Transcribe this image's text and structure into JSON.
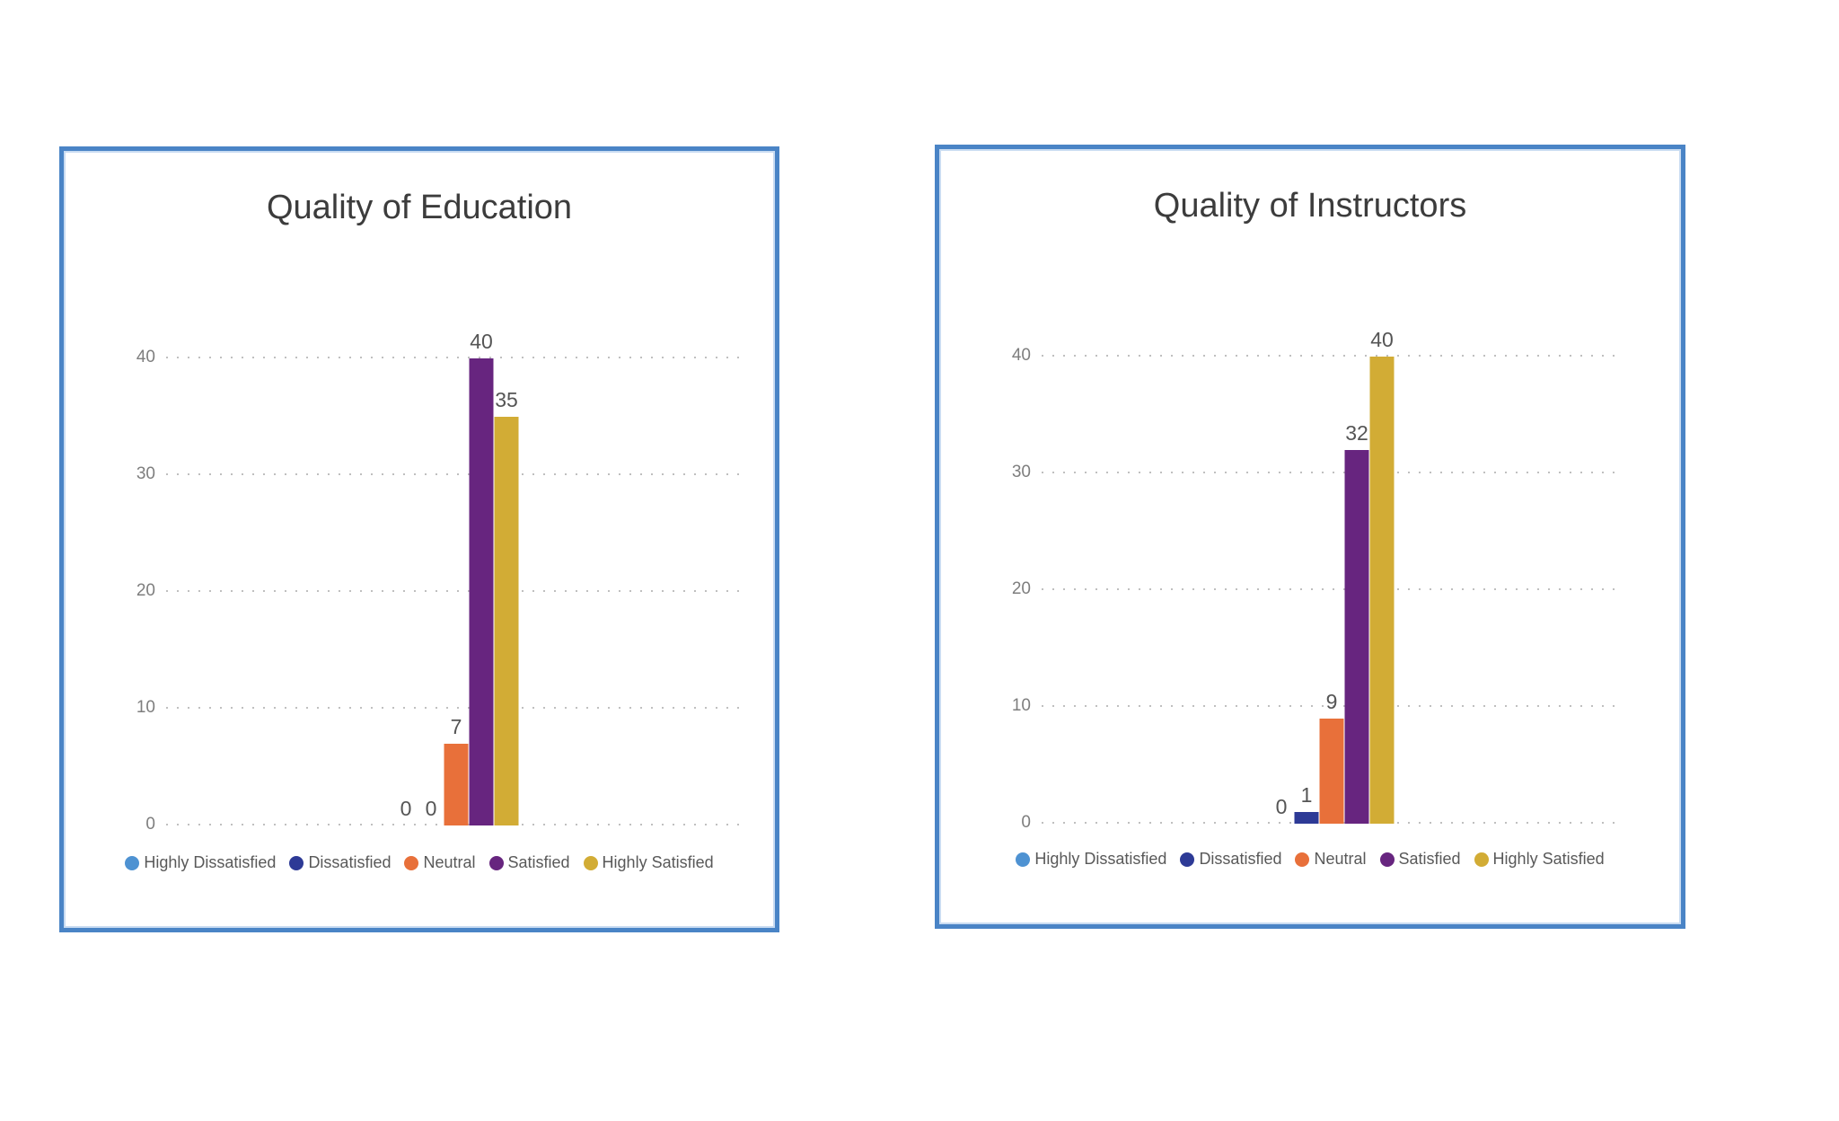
{
  "styles": {
    "background": "#FFFFFF",
    "card_border_color": "#4A84C6",
    "grid_color": "#BFBFBF",
    "tick_label_color": "#7E7E7E",
    "data_label_color": "#555555",
    "title_color": "#3C3C3C",
    "legend_text_color": "#595959"
  },
  "chart_data": [
    {
      "type": "bar",
      "title": "Quality of Education",
      "categories": [
        "Highly Dissatisfied",
        "Dissatisfied",
        "Neutral",
        "Satisfied",
        "Highly Satisfied"
      ],
      "values": [
        0,
        0,
        7,
        40,
        35
      ],
      "series_colors": [
        "#4E92D2",
        "#2D3A96",
        "#E8703A",
        "#67257F",
        "#D2AC35"
      ],
      "xlabel": "",
      "ylabel": "",
      "ylim": [
        0,
        40
      ],
      "yticks": [
        0,
        10,
        20,
        30,
        40
      ],
      "grid": "horizontal-dotted",
      "data_labels": true,
      "legend_position": "bottom"
    },
    {
      "type": "bar",
      "title": "Quality of Instructors",
      "categories": [
        "Highly Dissatisfied",
        "Dissatisfied",
        "Neutral",
        "Satisfied",
        "Highly Satisfied"
      ],
      "values": [
        0,
        1,
        9,
        32,
        40
      ],
      "series_colors": [
        "#4E92D2",
        "#2D3A96",
        "#E8703A",
        "#67257F",
        "#D2AC35"
      ],
      "xlabel": "",
      "ylabel": "",
      "ylim": [
        0,
        40
      ],
      "yticks": [
        0,
        10,
        20,
        30,
        40
      ],
      "grid": "horizontal-dotted",
      "data_labels": true,
      "legend_position": "bottom"
    }
  ]
}
